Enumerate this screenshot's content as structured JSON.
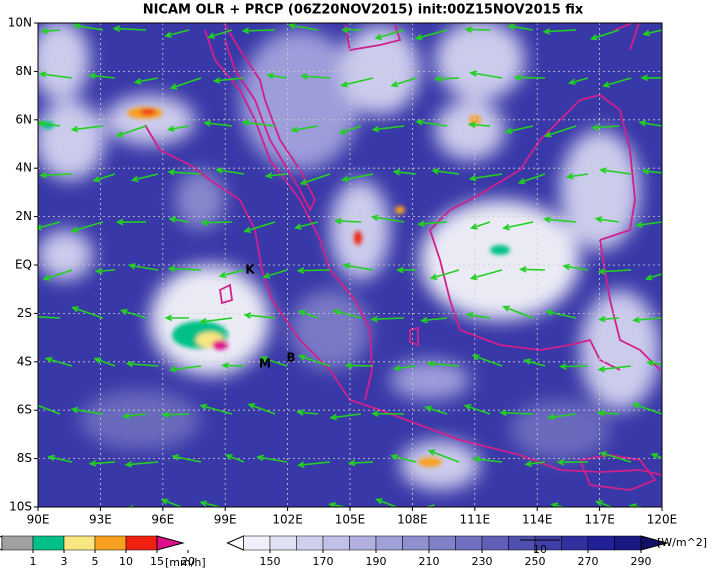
{
  "title": "NICAM OLR + PRCP (06Z20NOV2015) init:00Z15NOV2015 fix",
  "map": {
    "xlim": [
      90,
      120
    ],
    "ylim": [
      -10,
      10
    ],
    "xticks": [
      {
        "value": 90,
        "label": "90E"
      },
      {
        "value": 93,
        "label": "93E"
      },
      {
        "value": 96,
        "label": "96E"
      },
      {
        "value": 99,
        "label": "99E"
      },
      {
        "value": 102,
        "label": "102E"
      },
      {
        "value": 105,
        "label": "105E"
      },
      {
        "value": 108,
        "label": "108E"
      },
      {
        "value": 111,
        "label": "111E"
      },
      {
        "value": 114,
        "label": "114E"
      },
      {
        "value": 117,
        "label": "117E"
      },
      {
        "value": 120,
        "label": "120E"
      }
    ],
    "yticks": [
      {
        "value": 10,
        "label": "10N"
      },
      {
        "value": 8,
        "label": "8N"
      },
      {
        "value": 6,
        "label": "6N"
      },
      {
        "value": 4,
        "label": "4N"
      },
      {
        "value": 2,
        "label": "2N"
      },
      {
        "value": 0,
        "label": "EQ"
      },
      {
        "value": -2,
        "label": "2S"
      },
      {
        "value": -4,
        "label": "4S"
      },
      {
        "value": -6,
        "label": "6S"
      },
      {
        "value": -8,
        "label": "8S"
      },
      {
        "value": -10,
        "label": "10S"
      }
    ],
    "annotations": [
      "K",
      "M",
      "B"
    ],
    "grid": true
  },
  "precip_legend": {
    "ticks": [
      1,
      3,
      5,
      10,
      15,
      20
    ],
    "unit": "[mm/h]",
    "colors": [
      "#ffffff",
      "#a0a0a0",
      "#00c08a",
      "#f8e680",
      "#f8a020",
      "#f02010",
      "#e0108c"
    ]
  },
  "olr_legend": {
    "ticks": [
      150,
      170,
      190,
      210,
      230,
      250,
      270,
      290
    ],
    "unit": "[W/m^2]",
    "vector_label": "10",
    "colors": [
      "#ffffff",
      "#f0f0fa",
      "#e0e0f4",
      "#d0d0ee",
      "#c0c0e8",
      "#b0b0e0",
      "#a0a0d8",
      "#9090d0",
      "#8080c8",
      "#7070c0",
      "#6060b8",
      "#5050b0",
      "#4040a8",
      "#3030a0",
      "#202098",
      "#181880",
      "#101068"
    ]
  }
}
